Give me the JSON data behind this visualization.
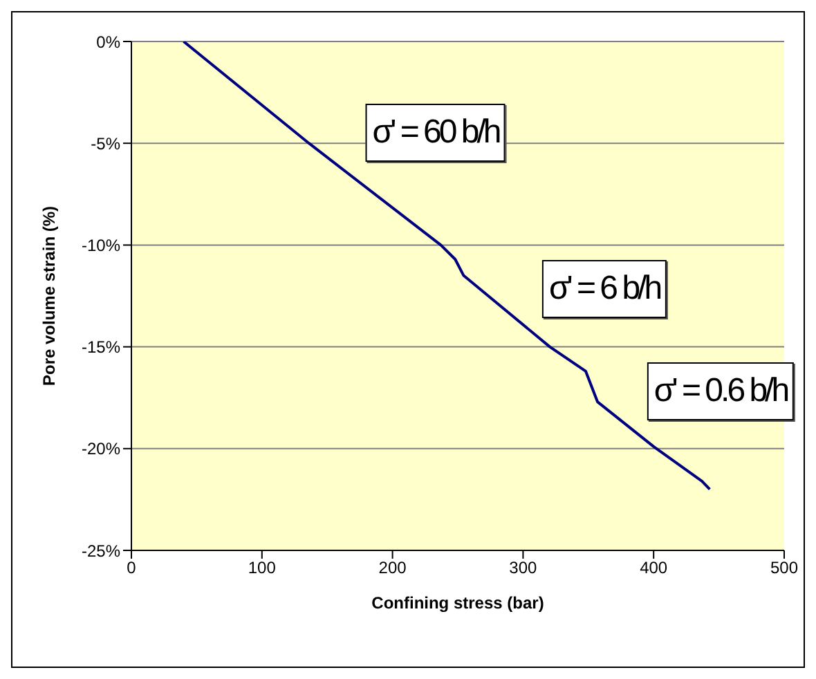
{
  "chart_data": {
    "type": "line",
    "xlabel": "Confining stress (bar)",
    "ylabel": "Pore volume strain (%)",
    "x": [
      40,
      136,
      237,
      248,
      254.5,
      320.5,
      348,
      357,
      400,
      437,
      443
    ],
    "series": [
      {
        "color": "#000080",
        "values": [
          0,
          -5,
          -10,
          -10.7,
          -11.5,
          -15,
          -16.2,
          -17.7,
          -19.9,
          -21.6,
          -22
        ]
      }
    ],
    "xlim": [
      0,
      500
    ],
    "xticks": [
      0,
      100,
      200,
      300,
      400,
      500
    ],
    "ylim": [
      -25,
      0
    ],
    "yticks": [
      {
        "value": -25,
        "label": "-25%"
      },
      {
        "value": -20,
        "label": "-20%"
      },
      {
        "value": -15,
        "label": "-15%"
      },
      {
        "value": -10,
        "label": "-10%"
      },
      {
        "value": -5,
        "label": "-5%"
      },
      {
        "value": 0,
        "label": "0%"
      }
    ],
    "grid": "y",
    "marker": "none",
    "line_style": "solid",
    "legend": false,
    "annotations": [
      "σ' = 60 b/h",
      "σ' = 6 b/h",
      "σ' = 0.6 b/h"
    ]
  }
}
